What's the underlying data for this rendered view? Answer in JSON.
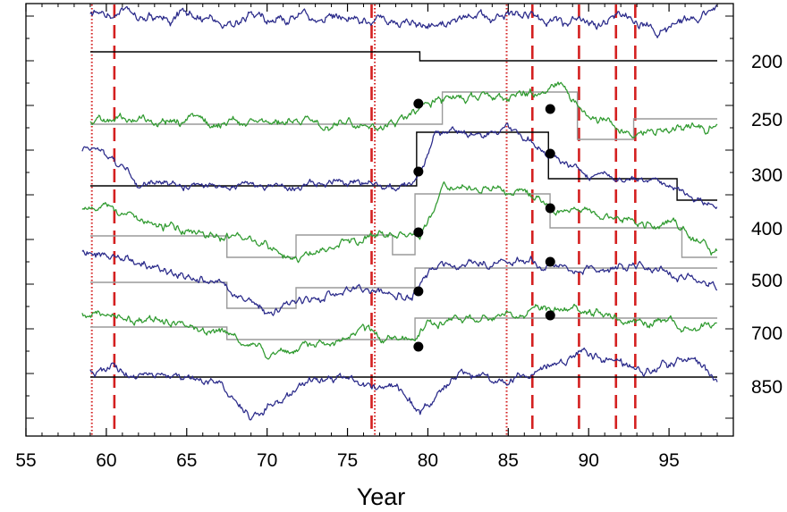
{
  "chart_data": {
    "type": "line",
    "title": "",
    "xlabel": "Year",
    "ylabel": "",
    "xlim": [
      55,
      99
    ],
    "x_ticks": [
      55,
      60,
      65,
      70,
      75,
      80,
      85,
      90,
      95
    ],
    "x_tick_labels": [
      "55",
      "60",
      "65",
      "70",
      "75",
      "80",
      "85",
      "90",
      "95"
    ],
    "x_minor_ticks": [
      56,
      57,
      58,
      59,
      61,
      62,
      63,
      64,
      66,
      67,
      68,
      69,
      71,
      72,
      73,
      74,
      76,
      77,
      78,
      79,
      81,
      82,
      83,
      84,
      86,
      87,
      88,
      89,
      91,
      92,
      93,
      94,
      96,
      97,
      98
    ],
    "grid": false,
    "legend": "none",
    "colors": {
      "blue": "#2a2a8a",
      "green": "#2f9a2f",
      "step": "#000000",
      "step_light": "#9a9a9a",
      "vline": "#d42020",
      "dot": "#000000"
    },
    "vertical_lines": [
      {
        "x": 59.1,
        "style": "dotted"
      },
      {
        "x": 60.5,
        "style": "dashed"
      },
      {
        "x": 76.5,
        "style": "dashed"
      },
      {
        "x": 76.7,
        "style": "dotted"
      },
      {
        "x": 84.9,
        "style": "dotted"
      },
      {
        "x": 86.5,
        "style": "dashed"
      },
      {
        "x": 89.4,
        "style": "dashed"
      },
      {
        "x": 91.7,
        "style": "dashed"
      },
      {
        "x": 92.9,
        "style": "dashed"
      }
    ],
    "series": [
      {
        "level": "200",
        "color": "blue",
        "start": 59.0,
        "seed": 11,
        "amp": 15,
        "segments": [
          [
            77.0,
            18
          ],
          [
            80.0,
            25
          ],
          [
            85.0,
            18
          ],
          [
            91.0,
            25
          ],
          [
            94.0,
            32
          ],
          [
            97.0,
            22
          ],
          [
            98.0,
            12
          ]
        ],
        "step_start": 59.0,
        "steps": [
          [
            79.5,
            58
          ],
          [
            98.0,
            68
          ]
        ]
      },
      {
        "level": "250",
        "color": "green",
        "start": 59.0,
        "seed": 23,
        "amp": 12,
        "segments": [
          [
            78.0,
            138
          ],
          [
            80.5,
            110
          ],
          [
            88.5,
            98
          ],
          [
            90.0,
            130
          ],
          [
            93.0,
            152
          ],
          [
            98.0,
            138
          ]
        ],
        "step_start": 59.0,
        "steps": [
          [
            80.9,
            139
          ],
          [
            89.3,
            103
          ],
          [
            92.8,
            156
          ],
          [
            98.0,
            133
          ]
        ],
        "step_light": true
      },
      {
        "level": "300",
        "color": "blue",
        "start": 58.5,
        "seed": 37,
        "amp": 10,
        "segments": [
          [
            59.3,
            170
          ],
          [
            62.0,
            206
          ],
          [
            79.0,
            208
          ],
          [
            80.5,
            148
          ],
          [
            85.0,
            146
          ],
          [
            87.5,
            168
          ],
          [
            90.0,
            200
          ],
          [
            94.0,
            200
          ],
          [
            98.0,
            232
          ]
        ],
        "step_start": 59.0,
        "steps": [
          [
            79.3,
            208
          ],
          [
            87.5,
            148
          ],
          [
            95.5,
            200
          ],
          [
            98.0,
            224
          ]
        ]
      },
      {
        "level": "400",
        "color": "green",
        "start": 58.5,
        "seed": 53,
        "amp": 12,
        "segments": [
          [
            59.3,
            237
          ],
          [
            67.5,
            263
          ],
          [
            72.0,
            287
          ],
          [
            78.0,
            262
          ],
          [
            79.5,
            266
          ],
          [
            81.0,
            208
          ],
          [
            86.0,
            213
          ],
          [
            88.0,
            238
          ],
          [
            96.0,
            256
          ],
          [
            98.0,
            286
          ]
        ],
        "step_start": 59.0,
        "steps": [
          [
            67.5,
            264
          ],
          [
            71.8,
            288
          ],
          [
            77.8,
            263
          ],
          [
            79.2,
            285
          ],
          [
            86.3,
            217
          ],
          [
            87.6,
            217
          ],
          [
            95.8,
            255
          ],
          [
            98.0,
            288
          ]
        ],
        "step_light": true
      },
      {
        "level": "500",
        "color": "blue",
        "start": 58.5,
        "seed": 71,
        "amp": 12,
        "segments": [
          [
            59.3,
            282
          ],
          [
            67.5,
            320
          ],
          [
            70.0,
            348
          ],
          [
            75.0,
            320
          ],
          [
            79.0,
            330
          ],
          [
            80.0,
            300
          ],
          [
            86.0,
            292
          ],
          [
            92.0,
            300
          ],
          [
            96.0,
            310
          ],
          [
            98.0,
            325
          ]
        ],
        "step_start": 59.0,
        "steps": [
          [
            67.5,
            316
          ],
          [
            71.8,
            345
          ],
          [
            79.2,
            322
          ],
          [
            98.0,
            300
          ]
        ],
        "step_light": true
      },
      {
        "level": "700",
        "color": "green",
        "start": 58.5,
        "seed": 89,
        "amp": 12,
        "segments": [
          [
            59.5,
            352
          ],
          [
            67.5,
            372
          ],
          [
            70.0,
            398
          ],
          [
            76.0,
            372
          ],
          [
            79.0,
            382
          ],
          [
            80.0,
            360
          ],
          [
            87.0,
            348
          ],
          [
            92.0,
            352
          ],
          [
            96.0,
            365
          ],
          [
            98.0,
            368
          ]
        ],
        "step_start": 59.0,
        "steps": [
          [
            67.5,
            366
          ],
          [
            79.2,
            380
          ],
          [
            98.0,
            356
          ]
        ],
        "step_light": true
      },
      {
        "level": "850",
        "color": "blue",
        "start": 59.0,
        "seed": 101,
        "amp": 12,
        "segments": [
          [
            60.0,
            415
          ],
          [
            67.0,
            428
          ],
          [
            69.0,
            470
          ],
          [
            73.0,
            425
          ],
          [
            78.0,
            432
          ],
          [
            79.5,
            462
          ],
          [
            82.0,
            418
          ],
          [
            85.0,
            428
          ],
          [
            89.5,
            395
          ],
          [
            93.5,
            418
          ],
          [
            96.5,
            398
          ],
          [
            98.0,
            430
          ]
        ],
        "step_start": 59.0,
        "steps": [
          [
            98.0,
            422
          ]
        ]
      }
    ],
    "points": [
      {
        "x": 79.3,
        "series_level": "250"
      },
      {
        "x": 79.3,
        "series_level": "300"
      },
      {
        "x": 79.3,
        "series_level": "400"
      },
      {
        "x": 79.3,
        "series_level": "500"
      },
      {
        "x": 79.3,
        "series_level": "700"
      },
      {
        "x": 87.5,
        "series_level": "250"
      },
      {
        "x": 87.5,
        "series_level": "300"
      },
      {
        "x": 87.5,
        "series_level": "400"
      },
      {
        "x": 87.5,
        "series_level": "500"
      },
      {
        "x": 87.5,
        "series_level": "700"
      }
    ]
  }
}
